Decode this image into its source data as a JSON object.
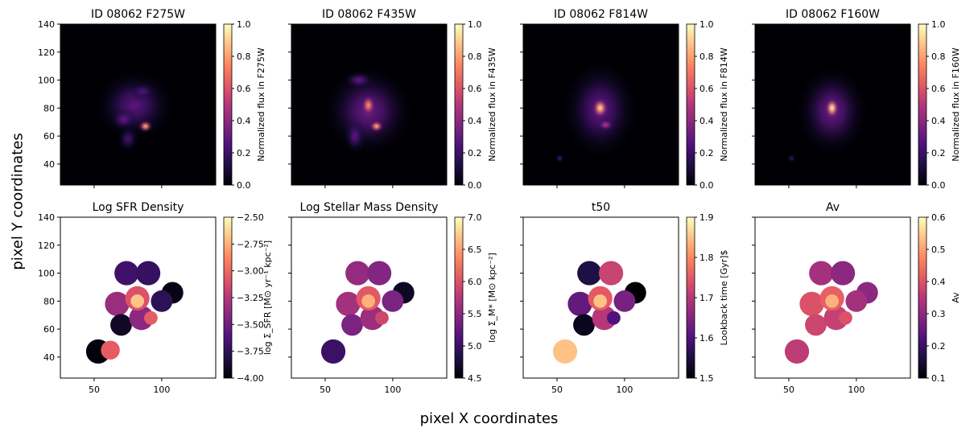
{
  "figure": {
    "supxlabel": "pixel X coordinates",
    "supylabel": "pixel Y coordinates",
    "colormap": [
      "#000004",
      "#1c1044",
      "#4f127b",
      "#812581",
      "#b5367a",
      "#e55964",
      "#fb8761",
      "#fec287",
      "#fcfdbf"
    ]
  },
  "chart_data": [
    {
      "type": "heatmap",
      "title": "ID 08062 F275W",
      "colorbar_label": "Normalized flux in F275W",
      "clim": [
        0.0,
        1.0
      ],
      "cticks": [
        "0.0",
        "0.2",
        "0.4",
        "0.6",
        "0.8",
        "1.0"
      ],
      "ctick_values": [
        0,
        0.2,
        0.4,
        0.6,
        0.8,
        1.0
      ],
      "xlim": [
        25,
        140
      ],
      "ylim": [
        25,
        140
      ],
      "xticks": [],
      "yticks": [
        40,
        60,
        80,
        100,
        120,
        140
      ],
      "background": "dark",
      "blobs": [
        {
          "x": 80,
          "y": 82,
          "sx": 18,
          "sy": 16,
          "v": 0.28
        },
        {
          "x": 88,
          "y": 67,
          "sx": 3.5,
          "sy": 3,
          "v": 0.85
        },
        {
          "x": 72,
          "y": 72,
          "sx": 6,
          "sy": 5,
          "v": 0.3
        },
        {
          "x": 75,
          "y": 58,
          "sx": 5,
          "sy": 6,
          "v": 0.22
        },
        {
          "x": 86,
          "y": 92,
          "sx": 6,
          "sy": 4,
          "v": 0.25
        }
      ]
    },
    {
      "type": "heatmap",
      "title": "ID 08062 F435W",
      "colorbar_label": "Normalized flux in F435W",
      "clim": [
        0.0,
        1.0
      ],
      "cticks": [
        "0.0",
        "0.2",
        "0.4",
        "0.6",
        "0.8",
        "1.0"
      ],
      "ctick_values": [
        0,
        0.2,
        0.4,
        0.6,
        0.8,
        1.0
      ],
      "xlim": [
        25,
        140
      ],
      "ylim": [
        25,
        140
      ],
      "xticks": [],
      "yticks": [],
      "background": "dark",
      "blobs": [
        {
          "x": 82,
          "y": 78,
          "sx": 20,
          "sy": 20,
          "v": 0.33
        },
        {
          "x": 82,
          "y": 82,
          "sx": 3.5,
          "sy": 5,
          "v": 0.8
        },
        {
          "x": 88,
          "y": 67,
          "sx": 3.5,
          "sy": 3,
          "v": 0.85
        },
        {
          "x": 72,
          "y": 60,
          "sx": 5,
          "sy": 8,
          "v": 0.28
        },
        {
          "x": 75,
          "y": 100,
          "sx": 7,
          "sy": 4,
          "v": 0.3
        }
      ]
    },
    {
      "type": "heatmap",
      "title": "ID 08062 F814W",
      "colorbar_label": "Normalized flux in F814W",
      "clim": [
        0.0,
        1.0
      ],
      "cticks": [
        "0.0",
        "0.2",
        "0.4",
        "0.6",
        "0.8",
        "1.0"
      ],
      "ctick_values": [
        0,
        0.2,
        0.4,
        0.6,
        0.8,
        1.0
      ],
      "xlim": [
        25,
        140
      ],
      "ylim": [
        25,
        140
      ],
      "xticks": [],
      "yticks": [],
      "background": "dark",
      "blobs": [
        {
          "x": 82,
          "y": 79,
          "sx": 17,
          "sy": 22,
          "v": 0.3
        },
        {
          "x": 82,
          "y": 80,
          "sx": 4,
          "sy": 5,
          "v": 0.95
        },
        {
          "x": 86,
          "y": 68,
          "sx": 4,
          "sy": 3,
          "v": 0.5
        },
        {
          "x": 52,
          "y": 44,
          "sx": 2,
          "sy": 2,
          "v": 0.25
        }
      ]
    },
    {
      "type": "heatmap",
      "title": "ID 08062 F160W",
      "colorbar_label": "Normalized flux in F160W",
      "clim": [
        0.0,
        1.0
      ],
      "cticks": [
        "0.0",
        "0.2",
        "0.4",
        "0.6",
        "0.8",
        "1.0"
      ],
      "ctick_values": [
        0,
        0.2,
        0.4,
        0.6,
        0.8,
        1.0
      ],
      "xlim": [
        25,
        140
      ],
      "ylim": [
        25,
        140
      ],
      "xticks": [],
      "yticks": [],
      "background": "dark",
      "blobs": [
        {
          "x": 82,
          "y": 78,
          "sx": 16,
          "sy": 20,
          "v": 0.33
        },
        {
          "x": 82,
          "y": 80,
          "sx": 3.5,
          "sy": 5,
          "v": 1.0
        },
        {
          "x": 52,
          "y": 44,
          "sx": 2,
          "sy": 2,
          "v": 0.2
        }
      ]
    },
    {
      "type": "heatmap",
      "title": "Log SFR Density",
      "colorbar_label": "log Σ_SFR [M⊙ yr⁻¹ kpc⁻²]",
      "clim": [
        -4.0,
        -2.5
      ],
      "cticks": [
        "−4.00",
        "−3.75",
        "−3.50",
        "−3.25",
        "−3.00",
        "−2.75",
        "−2.50"
      ],
      "ctick_values": [
        -4.0,
        -3.75,
        -3.5,
        -3.25,
        -3.0,
        -2.75,
        -2.5
      ],
      "xlim": [
        25,
        140
      ],
      "ylim": [
        25,
        140
      ],
      "xticks": [
        50,
        100
      ],
      "yticks": [
        40,
        60,
        80,
        100,
        120,
        140
      ],
      "background": "white",
      "regions": [
        {
          "x": 74,
          "y": 100,
          "r": 9,
          "v": -3.68
        },
        {
          "x": 90,
          "y": 100,
          "r": 9,
          "v": -3.72
        },
        {
          "x": 108,
          "y": 86,
          "r": 8,
          "v": -3.95
        },
        {
          "x": 67,
          "y": 78,
          "r": 9,
          "v": -3.35
        },
        {
          "x": 100,
          "y": 80,
          "r": 8,
          "v": -3.75
        },
        {
          "x": 70,
          "y": 63,
          "r": 8,
          "v": -3.9
        },
        {
          "x": 85,
          "y": 68,
          "r": 9,
          "v": -3.4
        },
        {
          "x": 92,
          "y": 68,
          "r": 5,
          "v": -3.05
        },
        {
          "x": 82,
          "y": 82,
          "r": 9,
          "v": -3.1
        },
        {
          "x": 82,
          "y": 80,
          "r": 5,
          "v": -2.68
        },
        {
          "x": 53,
          "y": 44,
          "r": 9,
          "v": -3.98
        },
        {
          "x": 62,
          "y": 45,
          "r": 7,
          "v": -3.05
        }
      ]
    },
    {
      "type": "heatmap",
      "title": "Log Stellar Mass Density",
      "colorbar_label": "log Σ_M* [M⊙ kpc⁻²]",
      "clim": [
        4.5,
        7.0
      ],
      "cticks": [
        "4.5",
        "5.0",
        "5.5",
        "6.0",
        "6.5",
        "7.0"
      ],
      "ctick_values": [
        4.5,
        5.0,
        5.5,
        6.0,
        6.5,
        7.0
      ],
      "xlim": [
        25,
        140
      ],
      "ylim": [
        25,
        140
      ],
      "xticks": [
        50,
        100
      ],
      "yticks": [],
      "background": "white",
      "regions": [
        {
          "x": 74,
          "y": 100,
          "r": 9,
          "v": 5.55
        },
        {
          "x": 90,
          "y": 100,
          "r": 9,
          "v": 5.45
        },
        {
          "x": 108,
          "y": 86,
          "r": 8,
          "v": 4.65
        },
        {
          "x": 67,
          "y": 78,
          "r": 9,
          "v": 5.65
        },
        {
          "x": 100,
          "y": 80,
          "r": 8,
          "v": 5.4
        },
        {
          "x": 70,
          "y": 63,
          "r": 8,
          "v": 5.4
        },
        {
          "x": 85,
          "y": 68,
          "r": 9,
          "v": 5.6
        },
        {
          "x": 92,
          "y": 68,
          "r": 5,
          "v": 5.9
        },
        {
          "x": 82,
          "y": 82,
          "r": 9,
          "v": 6.05
        },
        {
          "x": 82,
          "y": 80,
          "r": 5,
          "v": 6.6
        },
        {
          "x": 56,
          "y": 44,
          "r": 9,
          "v": 5.0
        }
      ]
    },
    {
      "type": "heatmap",
      "title": "t50",
      "colorbar_label": "Lookback time [Gyr]$",
      "clim": [
        1.5,
        1.9
      ],
      "cticks": [
        "1.5",
        "1.6",
        "1.7",
        "1.8",
        "1.9"
      ],
      "ctick_values": [
        1.5,
        1.6,
        1.7,
        1.8,
        1.9
      ],
      "xlim": [
        25,
        140
      ],
      "ylim": [
        25,
        140
      ],
      "xticks": [
        50,
        100
      ],
      "yticks": [],
      "background": "white",
      "regions": [
        {
          "x": 74,
          "y": 100,
          "r": 9,
          "v": 1.55
        },
        {
          "x": 90,
          "y": 100,
          "r": 9,
          "v": 1.72
        },
        {
          "x": 108,
          "y": 86,
          "r": 8,
          "v": 1.5
        },
        {
          "x": 67,
          "y": 78,
          "r": 9,
          "v": 1.62
        },
        {
          "x": 100,
          "y": 80,
          "r": 8,
          "v": 1.64
        },
        {
          "x": 70,
          "y": 63,
          "r": 8,
          "v": 1.52
        },
        {
          "x": 85,
          "y": 68,
          "r": 9,
          "v": 1.7
        },
        {
          "x": 92,
          "y": 68,
          "r": 5,
          "v": 1.6
        },
        {
          "x": 82,
          "y": 82,
          "r": 9,
          "v": 1.75
        },
        {
          "x": 82,
          "y": 80,
          "r": 5,
          "v": 1.85
        },
        {
          "x": 56,
          "y": 44,
          "r": 9,
          "v": 1.85
        }
      ]
    },
    {
      "type": "heatmap",
      "title": "Av",
      "colorbar_label": "Av",
      "clim": [
        0.1,
        0.6
      ],
      "cticks": [
        "0.1",
        "0.2",
        "0.3",
        "0.4",
        "0.5",
        "0.6"
      ],
      "ctick_values": [
        0.1,
        0.2,
        0.3,
        0.4,
        0.5,
        0.6
      ],
      "xlim": [
        25,
        140
      ],
      "ylim": [
        25,
        140
      ],
      "xticks": [
        50,
        100
      ],
      "yticks": [],
      "background": "white",
      "regions": [
        {
          "x": 74,
          "y": 100,
          "r": 9,
          "v": 0.33
        },
        {
          "x": 90,
          "y": 100,
          "r": 9,
          "v": 0.3
        },
        {
          "x": 108,
          "y": 86,
          "r": 8,
          "v": 0.3
        },
        {
          "x": 67,
          "y": 78,
          "r": 9,
          "v": 0.4
        },
        {
          "x": 100,
          "y": 80,
          "r": 8,
          "v": 0.33
        },
        {
          "x": 70,
          "y": 63,
          "r": 8,
          "v": 0.38
        },
        {
          "x": 85,
          "y": 68,
          "r": 9,
          "v": 0.37
        },
        {
          "x": 92,
          "y": 68,
          "r": 5,
          "v": 0.4
        },
        {
          "x": 82,
          "y": 82,
          "r": 9,
          "v": 0.42
        },
        {
          "x": 82,
          "y": 80,
          "r": 5,
          "v": 0.52
        },
        {
          "x": 56,
          "y": 44,
          "r": 9,
          "v": 0.36
        }
      ]
    }
  ]
}
